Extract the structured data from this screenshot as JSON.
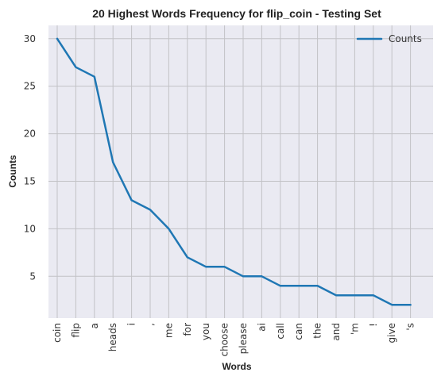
{
  "chart_data": {
    "type": "line",
    "title": "20 Highest Words Frequency for flip_coin - Testing Set",
    "xlabel": "Words",
    "ylabel": "Counts",
    "categories": [
      "coin",
      "flip",
      "a",
      "heads",
      "i",
      ",",
      "me",
      "for",
      "you",
      "choose",
      "please",
      "ai",
      "call",
      "can",
      "the",
      "and",
      "'m",
      "!",
      "give",
      "'s"
    ],
    "series": [
      {
        "name": "Counts",
        "values": [
          30,
          27,
          26,
          17,
          13,
          12,
          10,
          7,
          6,
          6,
          5,
          5,
          4,
          4,
          4,
          3,
          3,
          3,
          2,
          2
        ],
        "color": "#1f77b4"
      }
    ],
    "ylim": [
      0.6,
      31.4
    ],
    "yticks": [
      5,
      10,
      15,
      20,
      25,
      30
    ],
    "grid": true,
    "legend": "top-right",
    "background": "#eaeaf2"
  }
}
